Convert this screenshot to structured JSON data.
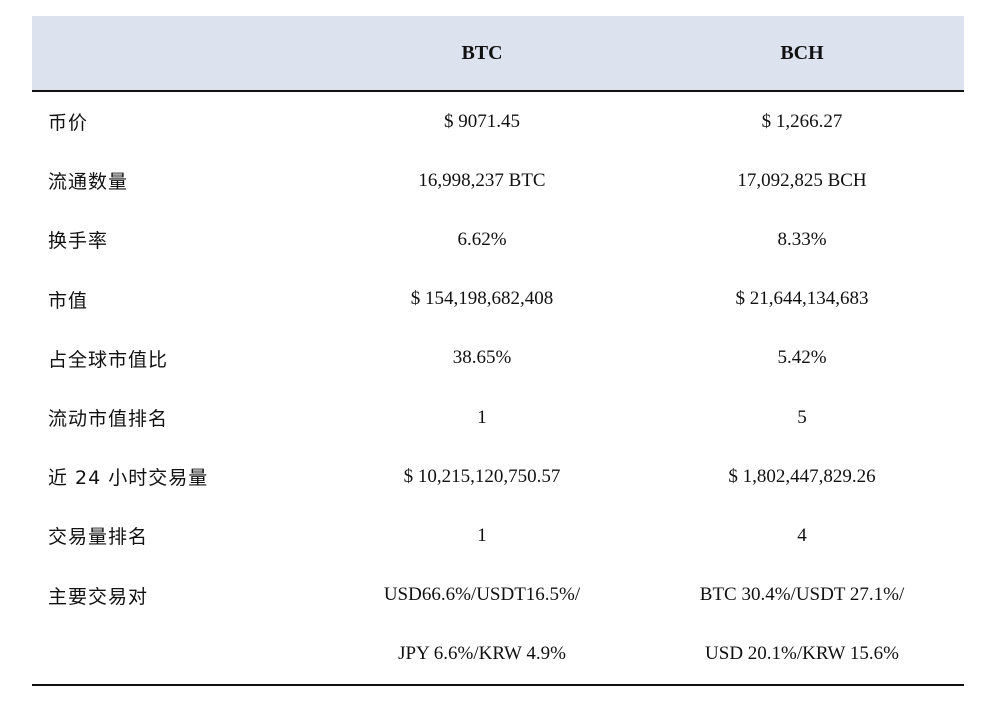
{
  "table": {
    "headers": {
      "label": "",
      "btc": "BTC",
      "bch": "BCH"
    },
    "rows": [
      {
        "label": "币价",
        "btc": "$ 9071.45",
        "bch": "$ 1,266.27"
      },
      {
        "label": "流通数量",
        "btc": "16,998,237 BTC",
        "bch": "17,092,825 BCH"
      },
      {
        "label": "换手率",
        "btc": "6.62%",
        "bch": "8.33%"
      },
      {
        "label": "市值",
        "btc": "$ 154,198,682,408",
        "bch": "$ 21,644,134,683"
      },
      {
        "label": "占全球市值比",
        "btc": "38.65%",
        "bch": "5.42%"
      },
      {
        "label": "流动市值排名",
        "btc": "1",
        "bch": "5"
      },
      {
        "label": "近 24 小时交易量",
        "btc": "$ 10,215,120,750.57",
        "bch": "$ 1,802,447,829.26"
      },
      {
        "label": "交易量排名",
        "btc": "1",
        "bch": "4"
      },
      {
        "label": "主要交易对",
        "btc": "USD66.6%/USDT16.5%/",
        "bch": "BTC 30.4%/USDT 27.1%/"
      },
      {
        "label": "",
        "btc": "JPY 6.6%/KRW 4.9%",
        "bch": "USD 20.1%/KRW 15.6%"
      }
    ]
  },
  "colors": {
    "header_bg": "#dde3ee",
    "rule": "#111111",
    "text": "#111111"
  }
}
